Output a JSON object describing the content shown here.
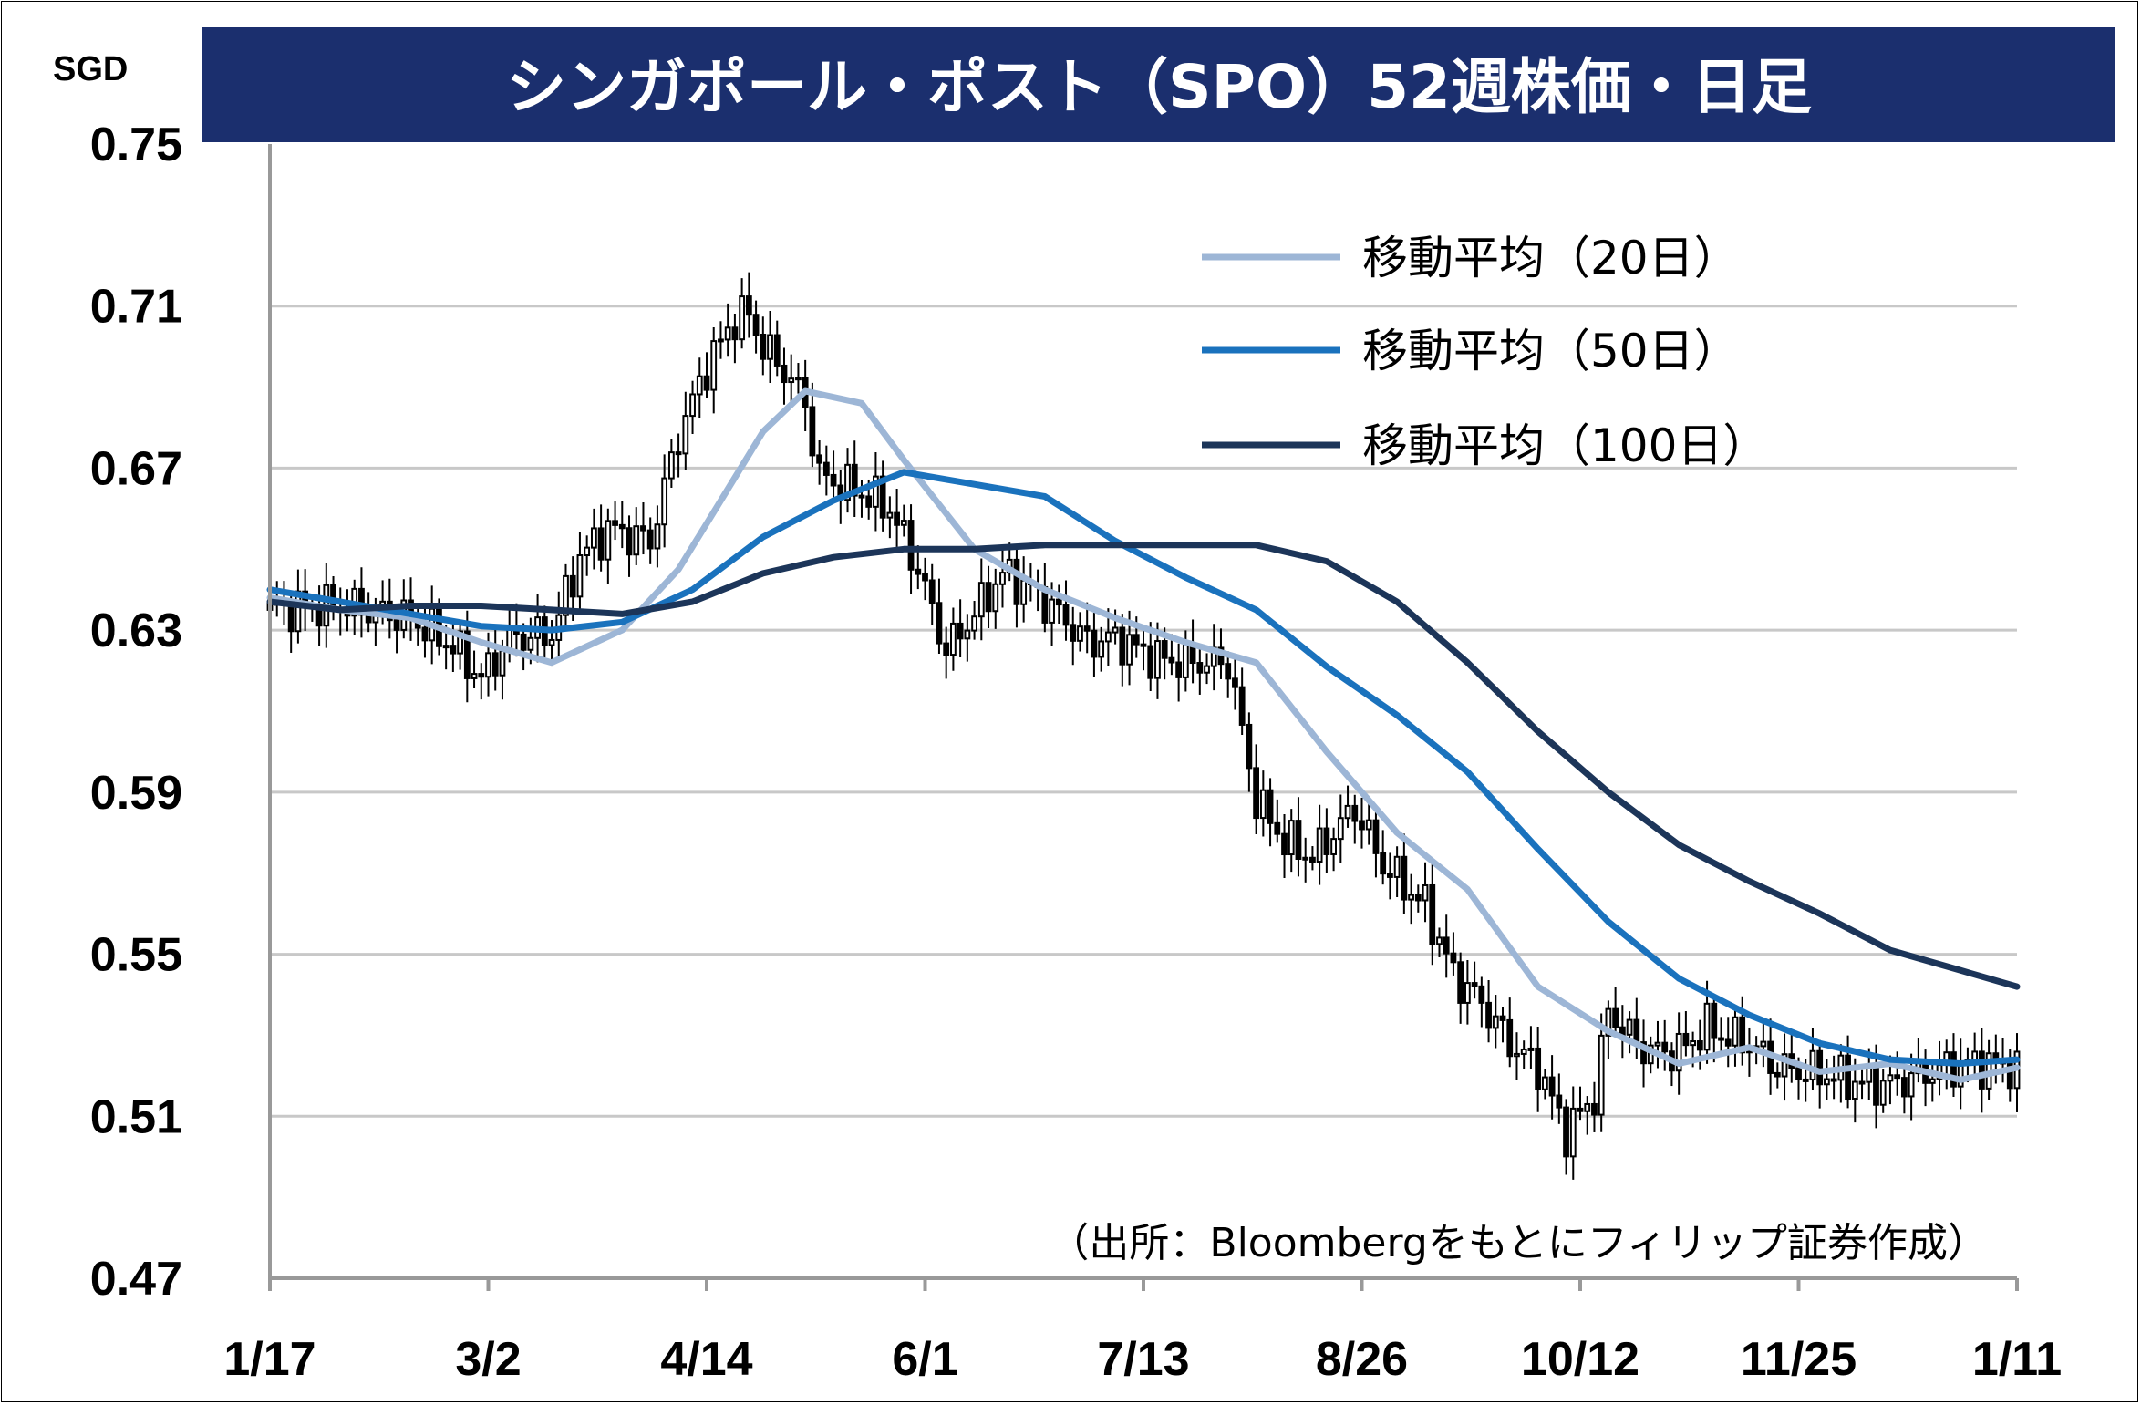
{
  "chart_data": {
    "type": "candlestick",
    "title": "シンガポール・ポスト（SPO）52週株価・日足",
    "ylabel": "SGD",
    "source_note": "（出所：Bloombergをもとにフィリップ証券作成）",
    "ylim": [
      0.47,
      0.75
    ],
    "yticks": [
      "0.75",
      "0.71",
      "0.67",
      "0.63",
      "0.59",
      "0.55",
      "0.51",
      "0.47"
    ],
    "xticks": [
      "1/17",
      "3/2",
      "4/14",
      "6/1",
      "7/13",
      "8/26",
      "10/12",
      "11/25",
      "1/11"
    ],
    "grid": true,
    "legend_position": "top-right",
    "colors": {
      "title_bg": "#1b2f6e",
      "ma20": "#9db6d6",
      "ma50": "#1a72bd",
      "ma100": "#1c3559",
      "grid": "#c8c8c8"
    },
    "series": [
      {
        "name": "移動平均（20日）",
        "x": [
          0,
          10,
          20,
          30,
          40,
          50,
          58,
          64,
          70,
          76,
          84,
          90,
          100,
          110,
          120,
          130,
          140,
          150,
          160,
          170,
          180,
          190,
          200,
          210,
          220,
          230,
          240,
          248
        ],
        "values": [
          0.638,
          0.635,
          0.633,
          0.627,
          0.622,
          0.63,
          0.645,
          0.662,
          0.679,
          0.689,
          0.686,
          0.672,
          0.65,
          0.64,
          0.633,
          0.627,
          0.622,
          0.6,
          0.58,
          0.566,
          0.542,
          0.531,
          0.523,
          0.527,
          0.521,
          0.523,
          0.519,
          0.522
        ]
      },
      {
        "name": "移動平均（50日）",
        "x": [
          0,
          10,
          20,
          30,
          40,
          50,
          60,
          70,
          80,
          90,
          100,
          110,
          120,
          130,
          140,
          150,
          160,
          170,
          180,
          190,
          200,
          210,
          220,
          230,
          240,
          248
        ],
        "values": [
          0.64,
          0.637,
          0.634,
          0.631,
          0.63,
          0.632,
          0.64,
          0.653,
          0.662,
          0.669,
          0.666,
          0.663,
          0.652,
          0.643,
          0.635,
          0.621,
          0.609,
          0.595,
          0.576,
          0.558,
          0.544,
          0.535,
          0.528,
          0.524,
          0.523,
          0.524
        ]
      },
      {
        "name": "移動平均（100日）",
        "x": [
          0,
          10,
          20,
          30,
          40,
          50,
          60,
          70,
          80,
          90,
          100,
          110,
          120,
          130,
          140,
          150,
          160,
          170,
          180,
          190,
          200,
          210,
          220,
          230,
          240,
          248
        ],
        "values": [
          0.637,
          0.635,
          0.636,
          0.636,
          0.635,
          0.634,
          0.637,
          0.644,
          0.648,
          0.65,
          0.65,
          0.651,
          0.651,
          0.651,
          0.651,
          0.647,
          0.637,
          0.622,
          0.605,
          0.59,
          0.577,
          0.568,
          0.56,
          0.551,
          0.546,
          0.542
        ]
      }
    ]
  }
}
